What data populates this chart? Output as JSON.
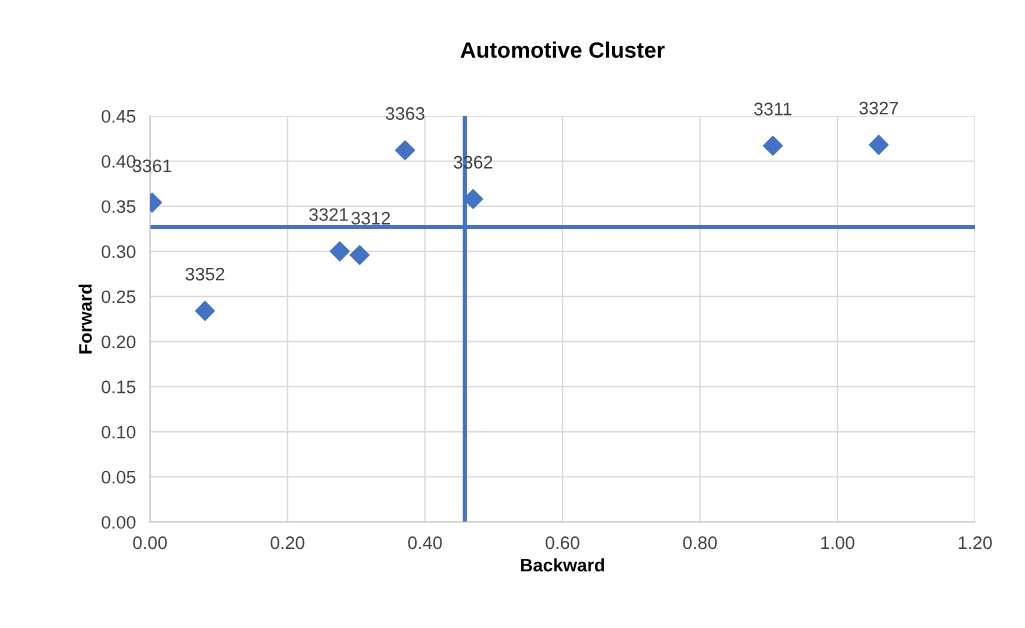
{
  "chart_data": {
    "type": "scatter",
    "title": "Automotive Cluster",
    "xlabel": "Backward",
    "ylabel": "Forward",
    "series": [
      {
        "color": "#4472c4",
        "x": [
          0.003,
          0.08,
          0.276,
          0.305,
          0.371,
          0.47,
          0.906,
          1.06
        ],
        "values": [
          0.354,
          0.234,
          0.3,
          0.296,
          0.412,
          0.358,
          0.417,
          0.418
        ]
      }
    ],
    "annotations": [
      {
        "text": "3361",
        "x": 0.003,
        "y": 0.354
      },
      {
        "text": "3352",
        "x": 0.08,
        "y": 0.234
      },
      {
        "text": "3321",
        "x": 0.276,
        "y": 0.3
      },
      {
        "text": "3312",
        "x": 0.305,
        "y": 0.296
      },
      {
        "text": "3363",
        "x": 0.371,
        "y": 0.412
      },
      {
        "text": "3362",
        "x": 0.47,
        "y": 0.358
      },
      {
        "text": "3311",
        "x": 0.906,
        "y": 0.417
      },
      {
        "text": "3327",
        "x": 1.06,
        "y": 0.418
      }
    ],
    "ref_lines": [
      {
        "axis": "x",
        "value": 0.458,
        "color": "#4472c4"
      },
      {
        "axis": "y",
        "value": 0.327,
        "color": "#4472c4"
      }
    ],
    "xlim": [
      0,
      1.2
    ],
    "xticks": [
      {
        "value": 0,
        "label": "0.00"
      },
      {
        "value": 0.2,
        "label": "0.20"
      },
      {
        "value": 0.4,
        "label": "0.40"
      },
      {
        "value": 0.6,
        "label": "0.60"
      },
      {
        "value": 0.8,
        "label": "0.80"
      },
      {
        "value": 1.0,
        "label": "1.00"
      },
      {
        "value": 1.2,
        "label": "1.20"
      }
    ],
    "ylim": [
      0,
      0.45
    ],
    "yticks": [
      {
        "value": 0,
        "label": "0.00"
      },
      {
        "value": 0.05,
        "label": "0.05"
      },
      {
        "value": 0.1,
        "label": "0.10"
      },
      {
        "value": 0.15,
        "label": "0.15"
      },
      {
        "value": 0.2,
        "label": "0.20"
      },
      {
        "value": 0.25,
        "label": "0.25"
      },
      {
        "value": 0.3,
        "label": "0.30"
      },
      {
        "value": 0.35,
        "label": "0.35"
      },
      {
        "value": 0.4,
        "label": "0.40"
      },
      {
        "value": 0.45,
        "label": "0.45"
      }
    ],
    "grid": true,
    "marker": "diamond"
  }
}
